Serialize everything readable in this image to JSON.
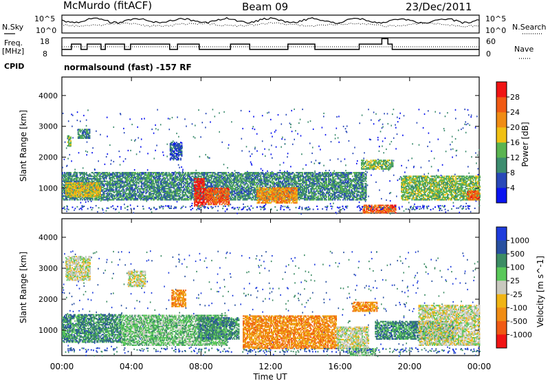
{
  "header": {
    "station": "McMurdo (fitACF)",
    "beam": "Beam 09",
    "date": "23/Dec/2011",
    "mode": "normalsound (fast) -157 RF"
  },
  "side_labels": {
    "nsky": "N.Sky",
    "nsearch": "N.Search",
    "freq": "Freq.",
    "freq_unit": "[MHz]",
    "nave": "Nave",
    "cpid": "CPID"
  },
  "chart_data": [
    {
      "type": "line",
      "panel": "noise",
      "y_ticks_left": [
        "10^5",
        "10^0"
      ],
      "y_ticks_right": [
        "10^5",
        "10^0"
      ],
      "series": [
        {
          "name": "N.Sky",
          "style": "solid"
        },
        {
          "name": "N.Search",
          "style": "dotted"
        }
      ]
    },
    {
      "type": "line",
      "panel": "frequency",
      "y_ticks_left": [
        "18",
        "8"
      ],
      "y_ticks_right": [
        "60",
        "0"
      ],
      "ylim_left": [
        8,
        18
      ],
      "ylim_right": [
        0,
        60
      ],
      "freq_steps": [
        {
          "t": 0.0,
          "v": 11.5
        },
        {
          "t": 0.55,
          "v": 14.5
        },
        {
          "t": 1.1,
          "v": 11.5
        },
        {
          "t": 1.45,
          "v": 14.5
        },
        {
          "t": 2.25,
          "v": 11.5
        },
        {
          "t": 2.5,
          "v": 14.5
        },
        {
          "t": 3.6,
          "v": 11.5
        },
        {
          "t": 3.95,
          "v": 14.5
        },
        {
          "t": 6.2,
          "v": 11.5
        },
        {
          "t": 6.65,
          "v": 14.5
        },
        {
          "t": 7.9,
          "v": 11.5
        },
        {
          "t": 9.7,
          "v": 14.5
        },
        {
          "t": 10.8,
          "v": 11.5
        },
        {
          "t": 13.0,
          "v": 14.5
        },
        {
          "t": 14.55,
          "v": 11.5
        },
        {
          "t": 17.1,
          "v": 14.5
        },
        {
          "t": 18.4,
          "v": 17.5
        },
        {
          "t": 18.75,
          "v": 14.5
        },
        {
          "t": 19.0,
          "v": 11.5
        },
        {
          "t": 24.0,
          "v": 11.5
        }
      ],
      "nave_level": 30
    },
    {
      "type": "heatmap",
      "panel": "power",
      "ylabel": "Slant Range [km]",
      "yticks": [
        1000,
        2000,
        3000,
        4000
      ],
      "ylim": [
        180,
        4600
      ],
      "xlim": [
        0,
        24
      ],
      "colorbar": {
        "label": "Power [dB]",
        "ticks": [
          4,
          8,
          12,
          16,
          20,
          24,
          28
        ],
        "colors": [
          "#0a14f0",
          "#2848b8",
          "#3c8c6e",
          "#5ab450",
          "#f0c014",
          "#f08c14",
          "#f05a14",
          "#f01414"
        ]
      },
      "regions": [
        {
          "t0": 0.0,
          "t1": 17.5,
          "r0": 600,
          "r1": 1500,
          "level": 2
        },
        {
          "t0": 0.2,
          "t1": 2.2,
          "r0": 700,
          "r1": 1150,
          "level": 4
        },
        {
          "t0": 7.6,
          "t1": 8.2,
          "r0": 400,
          "r1": 1300,
          "level": 7
        },
        {
          "t0": 8.2,
          "t1": 9.6,
          "r0": 450,
          "r1": 1000,
          "level": 6
        },
        {
          "t0": 11.2,
          "t1": 13.5,
          "r0": 500,
          "r1": 1000,
          "level": 5
        },
        {
          "t0": 17.3,
          "t1": 19.2,
          "r0": 180,
          "r1": 450,
          "level": 6
        },
        {
          "t0": 0.3,
          "t1": 0.5,
          "r0": 2350,
          "r1": 2700,
          "level": 3
        },
        {
          "t0": 0.9,
          "t1": 1.6,
          "r0": 2600,
          "r1": 2900,
          "level": 2
        },
        {
          "t0": 6.2,
          "t1": 6.9,
          "r0": 1900,
          "r1": 2500,
          "level": 1
        },
        {
          "t0": 17.2,
          "t1": 19.0,
          "r0": 1600,
          "r1": 1900,
          "level": 3
        },
        {
          "t0": 19.5,
          "t1": 24.0,
          "r0": 600,
          "r1": 1400,
          "level": 3
        },
        {
          "t0": 23.3,
          "t1": 24.0,
          "r0": 600,
          "r1": 900,
          "level": 6
        }
      ]
    },
    {
      "type": "heatmap",
      "panel": "velocity",
      "xlabel": "Time UT",
      "ylabel": "Slant Range [km]",
      "yticks": [
        1000,
        2000,
        3000,
        4000
      ],
      "ylim": [
        180,
        4600
      ],
      "xlim": [
        0,
        24
      ],
      "xticks": [
        "00:00",
        "04:00",
        "08:00",
        "12:00",
        "16:00",
        "20:00",
        "00:00"
      ],
      "colorbar": {
        "label": "Velocity [m s^-1]",
        "ticks": [
          "1000",
          "500",
          "100",
          "25",
          "-25",
          "-100",
          "-500",
          "-1000"
        ],
        "colors": [
          "#1e3cdc",
          "#2850a0",
          "#3c8c64",
          "#5ac85a",
          "#c8c8be",
          "#f0b414",
          "#f08c14",
          "#f05a14",
          "#f01414"
        ]
      },
      "regions": [
        {
          "t0": 0.0,
          "t1": 3.4,
          "r0": 600,
          "r1": 1500,
          "level": 2
        },
        {
          "t0": 3.4,
          "t1": 9.5,
          "r0": 500,
          "r1": 1500,
          "level": 3
        },
        {
          "t0": 7.8,
          "t1": 10.2,
          "r0": 700,
          "r1": 1400,
          "level": 2
        },
        {
          "t0": 10.4,
          "t1": 15.8,
          "r0": 400,
          "r1": 1450,
          "level": 6
        },
        {
          "t0": 15.8,
          "t1": 17.6,
          "r0": 400,
          "r1": 1100,
          "level": 4
        },
        {
          "t0": 18.0,
          "t1": 22.5,
          "r0": 700,
          "r1": 1300,
          "level": 2
        },
        {
          "t0": 20.5,
          "t1": 24.0,
          "r0": 500,
          "r1": 1800,
          "level": 4
        },
        {
          "t0": 6.3,
          "t1": 7.1,
          "r0": 1750,
          "r1": 2300,
          "level": 6
        },
        {
          "t0": 16.7,
          "t1": 18.1,
          "r0": 1600,
          "r1": 1900,
          "level": 6
        },
        {
          "t0": 0.2,
          "t1": 1.6,
          "r0": 2600,
          "r1": 3400,
          "level": 4
        },
        {
          "t0": 3.8,
          "t1": 4.8,
          "r0": 2400,
          "r1": 2900,
          "level": 4
        },
        {
          "t0": 16.5,
          "t1": 18.0,
          "r0": 180,
          "r1": 400,
          "level": 3
        }
      ]
    }
  ]
}
